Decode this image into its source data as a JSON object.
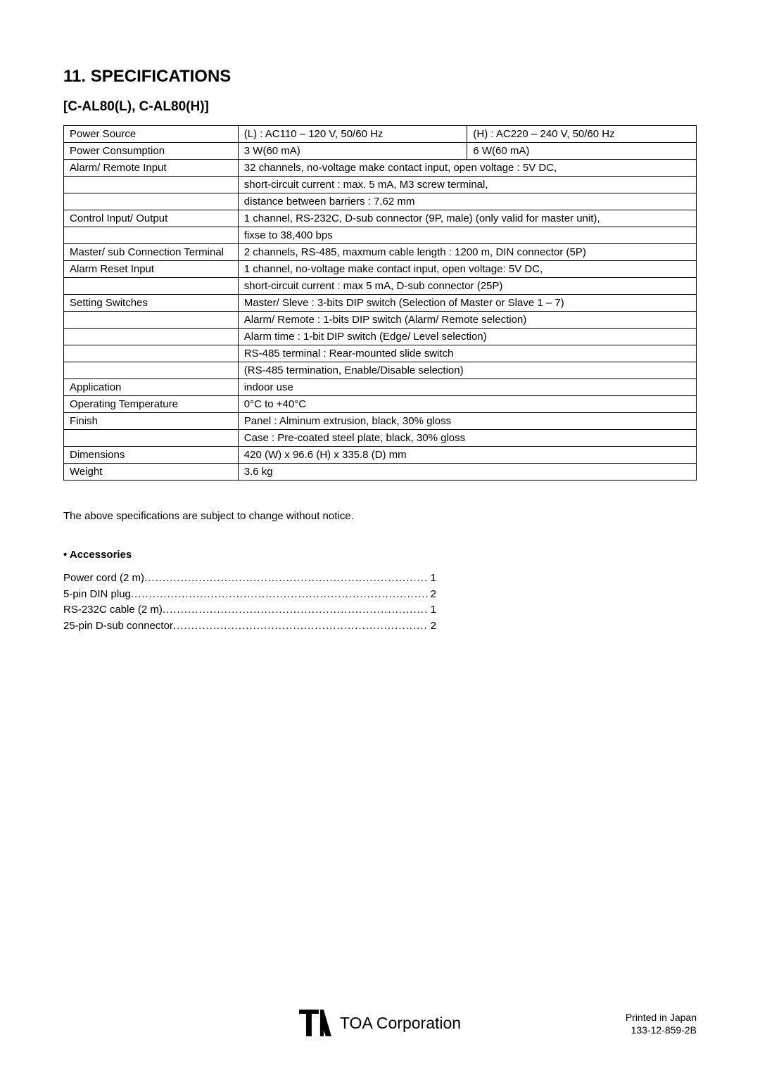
{
  "title": "11. SPECIFICATIONS",
  "subtitle": "[C-AL80(L), C-AL80(H)]",
  "table": {
    "rows": [
      {
        "label": "Power Source",
        "split": true,
        "left": "(L) : AC110 – 120 V, 50/60 Hz",
        "right": "(H) : AC220 – 240 V, 50/60 Hz"
      },
      {
        "label": "Power Consumption",
        "split": true,
        "left": "3 W(60 mA)",
        "right": "6 W(60 mA)"
      },
      {
        "label": "Alarm/ Remote Input",
        "split": false,
        "value": "32 channels, no-voltage make contact input, open voltage : 5V DC,"
      },
      {
        "label": "",
        "split": false,
        "value": "short-circuit current : max. 5 mA, M3 screw terminal,"
      },
      {
        "label": "",
        "split": false,
        "value": "distance between barriers : 7.62 mm"
      },
      {
        "label": "Control Input/ Output",
        "split": false,
        "value": "1 channel, RS-232C, D-sub connector (9P, male) (only valid for master unit),"
      },
      {
        "label": "",
        "split": false,
        "value": "fixse to 38,400 bps"
      },
      {
        "label": "Master/ sub Connection Terminal",
        "split": false,
        "value": "2 channels, RS-485, maxmum cable length : 1200 m, DIN connector (5P)"
      },
      {
        "label": "Alarm Reset Input",
        "split": false,
        "value": "1 channel, no-voltage make contact input, open voltage: 5V DC,"
      },
      {
        "label": "",
        "split": false,
        "value": "short-circuit current : max 5 mA, D-sub connector (25P)"
      },
      {
        "label": "Setting Switches",
        "split": false,
        "value": "Master/ Sleve : 3-bits DIP switch (Selection of Master or Slave 1 – 7)"
      },
      {
        "label": "",
        "split": false,
        "value": "Alarm/ Remote : 1-bits DIP switch (Alarm/ Remote selection)"
      },
      {
        "label": "",
        "split": false,
        "value": "Alarm time : 1-bit DIP switch (Edge/ Level selection)"
      },
      {
        "label": "",
        "split": false,
        "value": "RS-485 terminal : Rear-mounted slide switch"
      },
      {
        "label": "",
        "split": false,
        "value": "(RS-485 termination, Enable/Disable selection)"
      },
      {
        "label": "Application",
        "split": false,
        "value": "indoor use"
      },
      {
        "label": "Operating Temperature",
        "split": false,
        "value": "0°C to +40°C"
      },
      {
        "label": "Finish",
        "split": false,
        "value": "Panel : Alminum extrusion, black, 30% gloss"
      },
      {
        "label": "",
        "split": false,
        "value": "Case : Pre-coated steel plate, black, 30% gloss"
      },
      {
        "label": "Dimensions",
        "split": false,
        "value": "420 (W) x 96.6 (H) x 335.8 (D) mm"
      },
      {
        "label": "Weight",
        "split": false,
        "value": "3.6 kg"
      }
    ]
  },
  "note": "The above specifications are subject to change without notice.",
  "accessories_title": "• Accessories",
  "accessories": [
    {
      "name": "Power cord (2 m)  ",
      "qty": " 1"
    },
    {
      "name": "5-pin DIN plug ",
      "qty": " 2"
    },
    {
      "name": "RS-232C cable (2 m)  ",
      "qty": " 1"
    },
    {
      "name": "25-pin D-sub connector   ",
      "qty": " 2"
    }
  ],
  "footer": {
    "corp_name": "TOA Corporation",
    "printed": "Printed in Japan",
    "doc_no": "133-12-859-2B"
  },
  "styles": {
    "text_color": "#000000",
    "background_color": "#ffffff",
    "border_color": "#000000",
    "title_fontsize": 24,
    "subtitle_fontsize": 19,
    "body_fontsize": 15,
    "footer_fontsize": 14,
    "corp_fontsize": 23
  }
}
